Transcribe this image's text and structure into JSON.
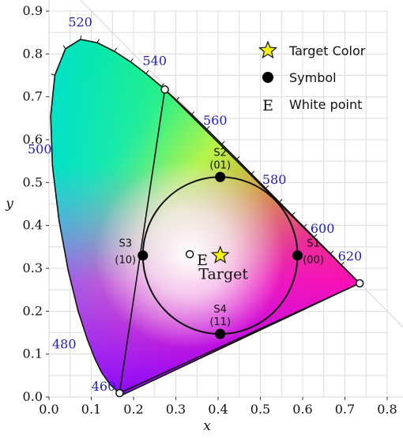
{
  "chart_data": {
    "type": "scatter",
    "xlabel": "x",
    "ylabel": "y",
    "xlim": [
      0.0,
      0.8
    ],
    "ylim": [
      0.0,
      0.9
    ],
    "x_ticks": [
      "0.0",
      "0.1",
      "0.2",
      "0.3",
      "0.4",
      "0.5",
      "0.6",
      "0.7",
      "0.8"
    ],
    "y_ticks": [
      "0.0",
      "0.1",
      "0.2",
      "0.3",
      "0.4",
      "0.5",
      "0.6",
      "0.7",
      "0.8",
      "0.9"
    ],
    "grid": true,
    "legend_position": "top-right",
    "legend": [
      {
        "name": "Target Color",
        "marker": "star",
        "color": "#f2f20a"
      },
      {
        "name": "Symbol",
        "marker": "filled-circle",
        "color": "#000000"
      },
      {
        "name": "White point",
        "marker": "E",
        "label_char": "E"
      }
    ],
    "spectral_locus": [
      {
        "wl": 380,
        "x": 0.1741,
        "y": 0.005
      },
      {
        "wl": 440,
        "x": 0.1644,
        "y": 0.0109
      },
      {
        "wl": 460,
        "x": 0.144,
        "y": 0.0297
      },
      {
        "wl": 470,
        "x": 0.1241,
        "y": 0.0578
      },
      {
        "wl": 475,
        "x": 0.1096,
        "y": 0.0868
      },
      {
        "wl": 480,
        "x": 0.0913,
        "y": 0.1327
      },
      {
        "wl": 485,
        "x": 0.0687,
        "y": 0.2007
      },
      {
        "wl": 490,
        "x": 0.0454,
        "y": 0.295
      },
      {
        "wl": 495,
        "x": 0.0235,
        "y": 0.4127
      },
      {
        "wl": 500,
        "x": 0.0082,
        "y": 0.5384
      },
      {
        "wl": 505,
        "x": 0.0039,
        "y": 0.6548
      },
      {
        "wl": 510,
        "x": 0.0139,
        "y": 0.7502
      },
      {
        "wl": 515,
        "x": 0.0389,
        "y": 0.812
      },
      {
        "wl": 520,
        "x": 0.0743,
        "y": 0.8338
      },
      {
        "wl": 525,
        "x": 0.1142,
        "y": 0.8262
      },
      {
        "wl": 530,
        "x": 0.1547,
        "y": 0.8059
      },
      {
        "wl": 535,
        "x": 0.1929,
        "y": 0.7816
      },
      {
        "wl": 540,
        "x": 0.2296,
        "y": 0.7543
      },
      {
        "wl": 545,
        "x": 0.2658,
        "y": 0.7243
      },
      {
        "wl": 550,
        "x": 0.3016,
        "y": 0.6923
      },
      {
        "wl": 555,
        "x": 0.3373,
        "y": 0.6589
      },
      {
        "wl": 560,
        "x": 0.3731,
        "y": 0.6245
      },
      {
        "wl": 565,
        "x": 0.4087,
        "y": 0.5896
      },
      {
        "wl": 570,
        "x": 0.4441,
        "y": 0.5547
      },
      {
        "wl": 575,
        "x": 0.4788,
        "y": 0.5202
      },
      {
        "wl": 580,
        "x": 0.5125,
        "y": 0.4866
      },
      {
        "wl": 585,
        "x": 0.5448,
        "y": 0.4544
      },
      {
        "wl": 590,
        "x": 0.5752,
        "y": 0.4242
      },
      {
        "wl": 595,
        "x": 0.6029,
        "y": 0.3965
      },
      {
        "wl": 600,
        "x": 0.627,
        "y": 0.3725
      },
      {
        "wl": 610,
        "x": 0.6658,
        "y": 0.334
      },
      {
        "wl": 620,
        "x": 0.6915,
        "y": 0.3083
      },
      {
        "wl": 630,
        "x": 0.7079,
        "y": 0.292
      },
      {
        "wl": 640,
        "x": 0.719,
        "y": 0.2809
      },
      {
        "wl": 660,
        "x": 0.73,
        "y": 0.27
      },
      {
        "wl": 700,
        "x": 0.7347,
        "y": 0.2653
      }
    ],
    "wavelength_labels": [
      {
        "text": "460",
        "x": 0.144,
        "y": 0.03,
        "dx": -0.015,
        "dy": -0.015
      },
      {
        "text": "480",
        "x": 0.091,
        "y": 0.133,
        "dx": -0.055,
        "dy": -0.02
      },
      {
        "text": "500",
        "x": 0.008,
        "y": 0.538,
        "dx": -0.03,
        "dy": 0.03
      },
      {
        "text": "520",
        "x": 0.074,
        "y": 0.834,
        "dx": 0.0,
        "dy": 0.03
      },
      {
        "text": "540",
        "x": 0.23,
        "y": 0.754,
        "dx": 0.02,
        "dy": 0.02
      },
      {
        "text": "560",
        "x": 0.373,
        "y": 0.625,
        "dx": 0.02,
        "dy": 0.01
      },
      {
        "text": "580",
        "x": 0.513,
        "y": 0.487,
        "dx": 0.02,
        "dy": 0.01
      },
      {
        "text": "600",
        "x": 0.627,
        "y": 0.373,
        "dx": 0.02,
        "dy": 0.01
      },
      {
        "text": "620",
        "x": 0.692,
        "y": 0.308,
        "dx": 0.02,
        "dy": 0.01
      }
    ],
    "primaries_triangle": [
      {
        "x": 0.274,
        "y": 0.717
      },
      {
        "x": 0.735,
        "y": 0.265
      },
      {
        "x": 0.167,
        "y": 0.009
      }
    ],
    "circle": {
      "cx": 0.405,
      "cy": 0.33,
      "r": 0.183
    },
    "symbols": [
      {
        "name": "S1",
        "code": "(00)",
        "x": 0.588,
        "y": 0.33,
        "label_side": "right"
      },
      {
        "name": "S2",
        "code": "(01)",
        "x": 0.405,
        "y": 0.513,
        "label_side": "top"
      },
      {
        "name": "S3",
        "code": "(10)",
        "x": 0.222,
        "y": 0.33,
        "label_side": "left"
      },
      {
        "name": "S4",
        "code": "(11)",
        "x": 0.405,
        "y": 0.147,
        "label_side": "top"
      }
    ],
    "target": {
      "x": 0.405,
      "y": 0.33,
      "label": "Target"
    },
    "white_point": {
      "x": 0.333,
      "y": 0.333,
      "label": "E"
    }
  }
}
